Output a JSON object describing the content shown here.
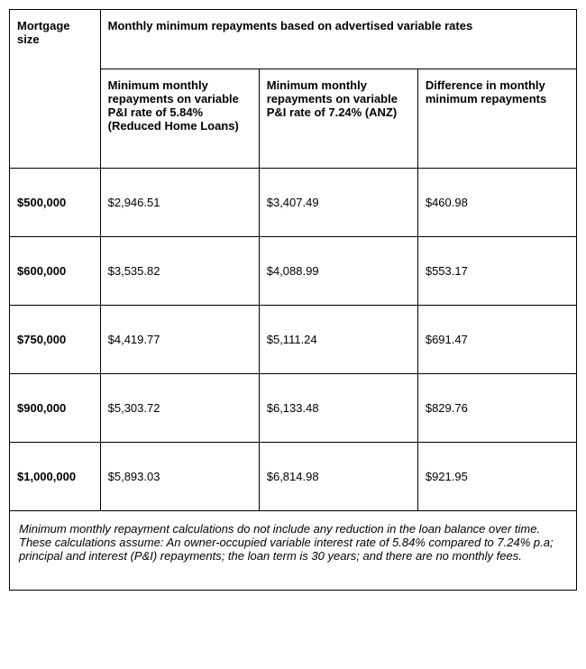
{
  "headers": {
    "mortgage_size": "Mortgage size",
    "main": "Monthly minimum repayments based on advertised variable rates",
    "col_a": "Minimum monthly repayments on variable P&I rate of 5.84% (Reduced Home Loans)",
    "col_b": "Minimum monthly repayments on variable P&I rate of 7.24% (ANZ)",
    "col_c": "Difference in monthly minimum repayments"
  },
  "rows": [
    {
      "mortgage": "$500,000",
      "a": "$2,946.51",
      "b": "$3,407.49",
      "c": "$460.98"
    },
    {
      "mortgage": "$600,000",
      "a": "$3,535.82",
      "b": "$4,088.99",
      "c": "$553.17"
    },
    {
      "mortgage": "$750,000",
      "a": "$4,419.77",
      "b": "$5,111.24",
      "c": "$691.47"
    },
    {
      "mortgage": "$900,000",
      "a": "$5,303.72",
      "b": "$6,133.48",
      "c": "$829.76"
    },
    {
      "mortgage": "$1,000,000",
      "a": "$5,893.03",
      "b": "$6,814.98",
      "c": "$921.95"
    }
  ],
  "footnote": "Minimum monthly repayment calculations do not include any reduction in the loan balance over time. These calculations assume: An owner-occupied variable interest rate of 5.84% compared to 7.24% p.a; principal and interest (P&I) repayments; the loan term is 30 years; and there are no monthly fees."
}
